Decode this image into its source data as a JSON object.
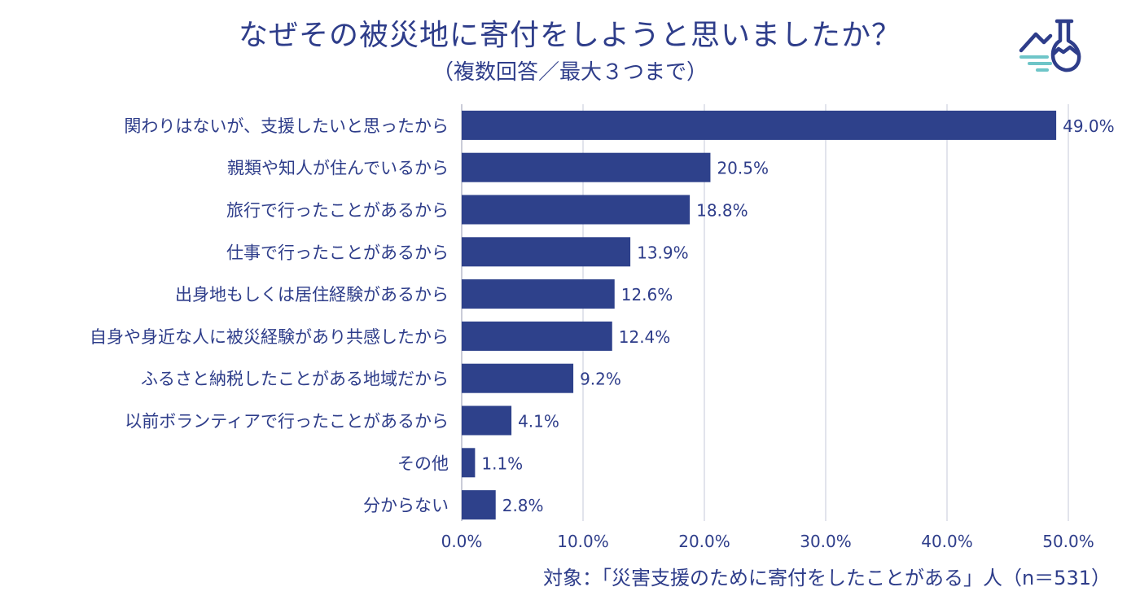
{
  "title": "なぜその被災地に寄付をしようと思いましたか？",
  "subtitle": "（複数回答／最大３つまで）",
  "footnote": "対象：「災害支援のために寄付をしたことがある」人（n＝531）",
  "logo_icon": "mountain-flask-icon",
  "colors": {
    "bar": "#2e418b",
    "text": "#2e3d8a",
    "grid": "#d8dbe6",
    "logo_accent": "#6ec5c8"
  },
  "chart_data": {
    "type": "bar",
    "orientation": "horizontal",
    "title": "なぜその被災地に寄付をしようと思いましたか？",
    "subtitle": "（複数回答／最大３つまで）",
    "categories": [
      "関わりはないが、支援したいと思ったから",
      "親類や知人が住んでいるから",
      "旅行で行ったことがあるから",
      "仕事で行ったことがあるから",
      "出身地もしくは居住経験があるから",
      "自身や身近な人に被災経験があり共感したから",
      "ふるさと納税したことがある地域だから",
      "以前ボランティアで行ったことがあるから",
      "その他",
      "分からない"
    ],
    "values": [
      49.0,
      20.5,
      18.8,
      13.9,
      12.6,
      12.4,
      9.2,
      4.1,
      1.1,
      2.8
    ],
    "value_labels": [
      "49.0%",
      "20.5%",
      "18.8%",
      "13.9%",
      "12.6%",
      "12.4%",
      "9.2%",
      "4.1%",
      "1.1%",
      "2.8%"
    ],
    "xlim": [
      0,
      50
    ],
    "xticks": [
      0,
      10,
      20,
      30,
      40,
      50
    ],
    "xtick_labels": [
      "0.0%",
      "10.0%",
      "20.0%",
      "30.0%",
      "40.0%",
      "50.0%"
    ],
    "xlabel": "",
    "ylabel": "",
    "grid": true
  }
}
